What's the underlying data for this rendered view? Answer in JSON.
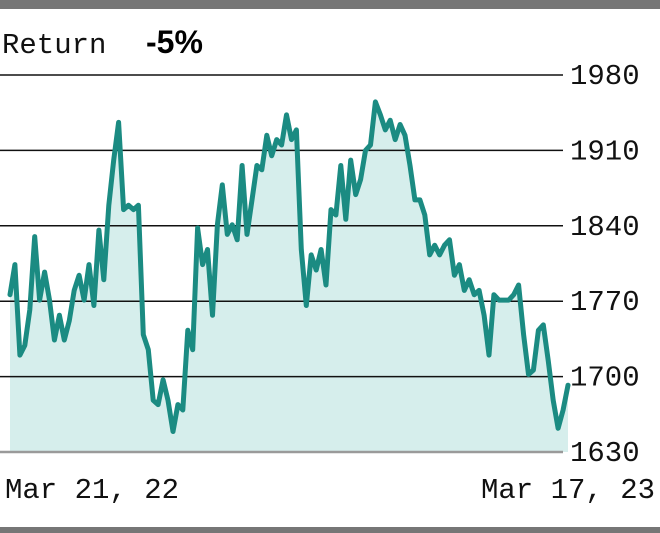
{
  "chart_data": {
    "type": "line",
    "title": "Return",
    "subtitle": "-5%",
    "categories": [
      "Mar 21, 22",
      null,
      null,
      null,
      null,
      null,
      null,
      null,
      null,
      null,
      null,
      null,
      null,
      null,
      null,
      null,
      null,
      null,
      null,
      null,
      null,
      null,
      null,
      null,
      null,
      null,
      null,
      null,
      null,
      null,
      null,
      null,
      null,
      null,
      null,
      null,
      null,
      null,
      null,
      null,
      null,
      null,
      null,
      null,
      null,
      null,
      null,
      null,
      null,
      null,
      null,
      null,
      null,
      null,
      null,
      null,
      null,
      null,
      null,
      null,
      null,
      null,
      null,
      null,
      null,
      null,
      null,
      null,
      null,
      null,
      null,
      null,
      null,
      null,
      null,
      null,
      null,
      null,
      null,
      null,
      null,
      null,
      null,
      null,
      null,
      null,
      null,
      null,
      null,
      null,
      null,
      null,
      null,
      null,
      null,
      null,
      null,
      null,
      null,
      null,
      null,
      null,
      null,
      null,
      null,
      null,
      null,
      null,
      null,
      null,
      null,
      null,
      null,
      "Mar 17, 23"
    ],
    "values": [
      1776,
      1804,
      1720,
      1729,
      1762,
      1830,
      1771,
      1797,
      1771,
      1734,
      1757,
      1734,
      1752,
      1780,
      1794,
      1771,
      1804,
      1766,
      1836,
      1790,
      1859,
      1901,
      1936,
      1855,
      1859,
      1855,
      1859,
      1739,
      1725,
      1678,
      1674,
      1697,
      1678,
      1649,
      1674,
      1669,
      1743,
      1725,
      1838,
      1804,
      1818,
      1757,
      1841,
      1878,
      1832,
      1841,
      1827,
      1896,
      1832,
      1864,
      1896,
      1892,
      1924,
      1905,
      1920,
      1915,
      1943,
      1920,
      1929,
      1818,
      1766,
      1813,
      1799,
      1818,
      1785,
      1855,
      1850,
      1896,
      1846,
      1901,
      1869,
      1883,
      1910,
      1915,
      1955,
      1943,
      1929,
      1938,
      1920,
      1934,
      1924,
      1896,
      1864,
      1864,
      1850,
      1813,
      1822,
      1813,
      1822,
      1827,
      1794,
      1804,
      1780,
      1790,
      1776,
      1780,
      1757,
      1720,
      1776,
      1771,
      1771,
      1771,
      1776,
      1785,
      1739,
      1702,
      1706,
      1743,
      1748,
      1715,
      1678,
      1652,
      1669,
      1692
    ],
    "color": "#1b8b82",
    "fill_color": "#d6eeec",
    "ylim": [
      1630,
      1980
    ],
    "yticks": [
      1630,
      1700,
      1770,
      1840,
      1910,
      1980
    ],
    "grid": true
  }
}
